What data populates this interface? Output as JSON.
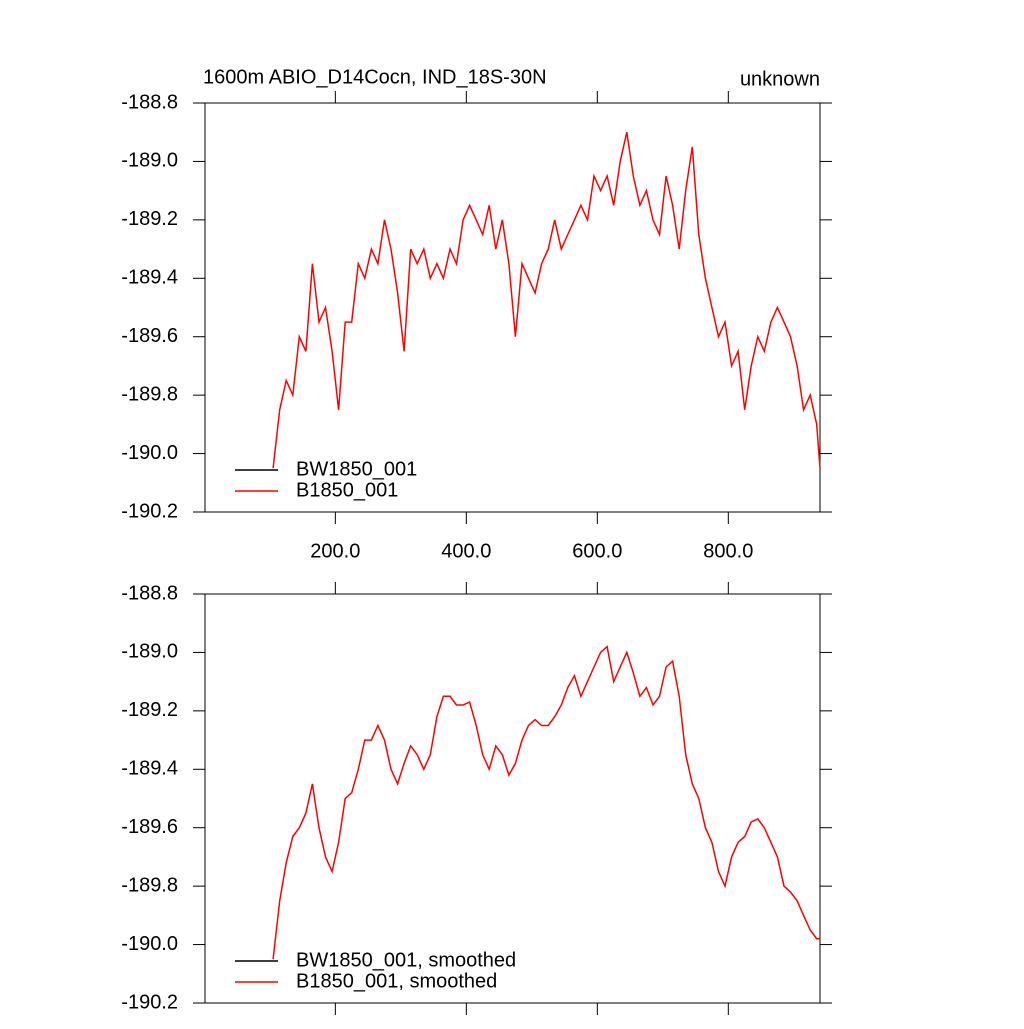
{
  "chart_data": [
    {
      "type": "line",
      "title": "1600m ABIO_D14Cocn, IND_18S-30N",
      "subtitle": "unknown",
      "x": [
        105,
        115,
        125,
        135,
        145,
        155,
        165,
        175,
        185,
        195,
        205,
        215,
        225,
        235,
        245,
        255,
        265,
        275,
        285,
        295,
        305,
        315,
        325,
        335,
        345,
        355,
        365,
        375,
        385,
        395,
        405,
        415,
        425,
        435,
        445,
        455,
        465,
        475,
        485,
        495,
        505,
        515,
        525,
        535,
        545,
        555,
        565,
        575,
        585,
        595,
        605,
        615,
        625,
        635,
        645,
        655,
        665,
        675,
        685,
        695,
        705,
        715,
        725,
        735,
        745,
        755,
        765,
        775,
        785,
        795,
        805,
        815,
        825,
        835,
        845,
        855,
        865,
        875,
        885,
        895,
        905,
        915,
        925,
        935,
        940
      ],
      "series": [
        {
          "name": "BW1850_001",
          "color": "#000000",
          "values": [
            null,
            null,
            null,
            null,
            null,
            null,
            null,
            null,
            null,
            null,
            null,
            null,
            null,
            null,
            null,
            null,
            null,
            null,
            null,
            null,
            null,
            null,
            null,
            null,
            null,
            null,
            null,
            null,
            null,
            null,
            null,
            null,
            null,
            null,
            null,
            null,
            null,
            null,
            null,
            null,
            null,
            null,
            null,
            null,
            null,
            null,
            null,
            null,
            null,
            null,
            null,
            null,
            null,
            null,
            null,
            null,
            null,
            null,
            null,
            null,
            null,
            null,
            null,
            null,
            null,
            null,
            null,
            null,
            null,
            null,
            null,
            null,
            null,
            null,
            null,
            null,
            null,
            null,
            null,
            null,
            null,
            null,
            null,
            null,
            null
          ]
        },
        {
          "name": "B1850_001",
          "color": "#ff0000",
          "values": [
            -190.05,
            -189.85,
            -189.75,
            -189.8,
            -189.6,
            -189.65,
            -189.35,
            -189.55,
            -189.5,
            -189.65,
            -189.85,
            -189.55,
            -189.55,
            -189.35,
            -189.4,
            -189.3,
            -189.35,
            -189.2,
            -189.3,
            -189.45,
            -189.65,
            -189.3,
            -189.35,
            -189.3,
            -189.4,
            -189.35,
            -189.4,
            -189.3,
            -189.35,
            -189.2,
            -189.15,
            -189.2,
            -189.25,
            -189.15,
            -189.3,
            -189.2,
            -189.35,
            -189.6,
            -189.35,
            -189.4,
            -189.45,
            -189.35,
            -189.3,
            -189.2,
            -189.3,
            -189.25,
            -189.2,
            -189.15,
            -189.2,
            -189.05,
            -189.1,
            -189.05,
            -189.15,
            -189.0,
            -188.9,
            -189.05,
            -189.15,
            -189.1,
            -189.2,
            -189.25,
            -189.05,
            -189.15,
            -189.3,
            -189.1,
            -188.95,
            -189.25,
            -189.4,
            -189.5,
            -189.6,
            -189.55,
            -189.7,
            -189.65,
            -189.85,
            -189.7,
            -189.6,
            -189.65,
            -189.55,
            -189.5,
            -189.55,
            -189.6,
            -189.7,
            -189.85,
            -189.8,
            -189.9,
            -190.05
          ]
        }
      ],
      "xlim": [
        1,
        940
      ],
      "xticks": [
        {
          "value": 200,
          "label": "200.0"
        },
        {
          "value": 400,
          "label": "400.0"
        },
        {
          "value": 600,
          "label": "600.0"
        },
        {
          "value": 800,
          "label": "800.0"
        }
      ],
      "xtick_labels": true,
      "ylim": [
        -190.2,
        -188.8
      ],
      "yticks": [
        {
          "value": -190.2,
          "label": "-190.2"
        },
        {
          "value": -190,
          "label": "-190.0"
        },
        -189.8,
        -189.6,
        -189.4,
        -189.2,
        {
          "value": -189,
          "label": "-189.0"
        },
        -188.8
      ],
      "legend": "lower-left"
    },
    {
      "type": "line",
      "x": [
        105,
        115,
        125,
        135,
        145,
        155,
        165,
        175,
        185,
        195,
        205,
        215,
        225,
        235,
        245,
        255,
        265,
        275,
        285,
        295,
        305,
        315,
        325,
        335,
        345,
        355,
        365,
        375,
        385,
        395,
        405,
        415,
        425,
        435,
        445,
        455,
        465,
        475,
        485,
        495,
        505,
        515,
        525,
        535,
        545,
        555,
        565,
        575,
        585,
        595,
        605,
        615,
        625,
        635,
        645,
        655,
        665,
        675,
        685,
        695,
        705,
        715,
        725,
        735,
        745,
        755,
        765,
        775,
        785,
        795,
        805,
        815,
        825,
        835,
        845,
        855,
        865,
        875,
        885,
        895,
        905,
        915,
        925,
        935,
        940
      ],
      "series": [
        {
          "name": "BW1850_001, smoothed",
          "color": "#000000",
          "values": [
            null,
            null,
            null,
            null,
            null,
            null,
            null,
            null,
            null,
            null,
            null,
            null,
            null,
            null,
            null,
            null,
            null,
            null,
            null,
            null,
            null,
            null,
            null,
            null,
            null,
            null,
            null,
            null,
            null,
            null,
            null,
            null,
            null,
            null,
            null,
            null,
            null,
            null,
            null,
            null,
            null,
            null,
            null,
            null,
            null,
            null,
            null,
            null,
            null,
            null,
            null,
            null,
            null,
            null,
            null,
            null,
            null,
            null,
            null,
            null,
            null,
            null,
            null,
            null,
            null,
            null,
            null,
            null,
            null,
            null,
            null,
            null,
            null,
            null,
            null,
            null,
            null,
            null,
            null,
            null,
            null,
            null,
            null,
            null,
            null
          ]
        },
        {
          "name": "B1850_001, smoothed",
          "color": "#ff0000",
          "values": [
            -190.05,
            -189.85,
            -189.72,
            -189.63,
            -189.6,
            -189.55,
            -189.45,
            -189.6,
            -189.7,
            -189.75,
            -189.65,
            -189.5,
            -189.48,
            -189.4,
            -189.3,
            -189.3,
            -189.25,
            -189.3,
            -189.4,
            -189.45,
            -189.38,
            -189.32,
            -189.35,
            -189.4,
            -189.35,
            -189.22,
            -189.15,
            -189.15,
            -189.18,
            -189.18,
            -189.17,
            -189.25,
            -189.35,
            -189.4,
            -189.32,
            -189.35,
            -189.42,
            -189.38,
            -189.3,
            -189.25,
            -189.23,
            -189.25,
            -189.25,
            -189.22,
            -189.18,
            -189.12,
            -189.08,
            -189.15,
            -189.1,
            -189.05,
            -189.0,
            -188.98,
            -189.1,
            -189.05,
            -189.0,
            -189.07,
            -189.15,
            -189.12,
            -189.18,
            -189.15,
            -189.05,
            -189.03,
            -189.15,
            -189.35,
            -189.45,
            -189.5,
            -189.6,
            -189.65,
            -189.75,
            -189.8,
            -189.7,
            -189.65,
            -189.63,
            -189.58,
            -189.57,
            -189.6,
            -189.65,
            -189.7,
            -189.8,
            -189.82,
            -189.85,
            -189.9,
            -189.95,
            -189.98,
            -189.98
          ]
        }
      ],
      "xlim": [
        1,
        940
      ],
      "xticks": [
        200,
        400,
        600,
        800
      ],
      "xtick_labels": false,
      "ylim": [
        -190.2,
        -188.8
      ],
      "yticks": [
        {
          "value": -190.2,
          "label": "-190.2"
        },
        {
          "value": -190,
          "label": "-190.0"
        },
        -189.8,
        -189.6,
        -189.4,
        -189.2,
        {
          "value": -189,
          "label": "-189.0"
        },
        -188.8
      ],
      "legend": "lower-left"
    }
  ]
}
